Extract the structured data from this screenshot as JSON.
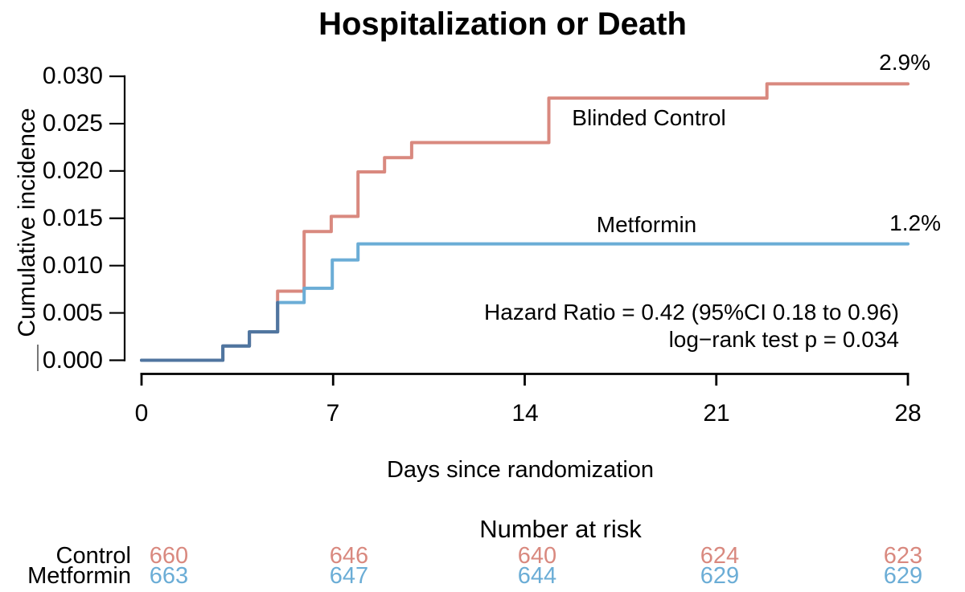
{
  "title": "Hospitalization or Death",
  "colors": {
    "control": "#d9897f",
    "metformin": "#6badd6",
    "overlap": "#50759f",
    "axis": "#000000"
  },
  "y_axis": {
    "label": "Cumulative incidence",
    "tick_labels": [
      "0.000",
      "0.005",
      "0.010",
      "0.015",
      "0.020",
      "0.025",
      "0.030"
    ],
    "tick_values": [
      0.0,
      0.005,
      0.01,
      0.015,
      0.02,
      0.025,
      0.03
    ]
  },
  "x_axis": {
    "label": "Days since randomization",
    "tick_labels": [
      "0",
      "7",
      "14",
      "21",
      "28"
    ],
    "tick_values": [
      0,
      7,
      14,
      21,
      28
    ]
  },
  "annotations": {
    "control_curve_label": "Blinded Control",
    "metformin_curve_label": "Metformin",
    "control_final_pct": "2.9%",
    "metformin_final_pct": "1.2%",
    "hazard_line1": "Hazard Ratio = 0.42 (95%CI 0.18 to 0.96)",
    "hazard_line2": "log−rank test p = 0.034"
  },
  "chart_data": {
    "type": "line",
    "subtype": "step-after cumulative incidence (Kaplan-Meier)",
    "title": "Hospitalization or Death",
    "xlabel": "Days since randomization",
    "ylabel": "Cumulative incidence",
    "xlim": [
      0,
      28
    ],
    "ylim": [
      0.0,
      0.03
    ],
    "x_ticks": [
      0,
      7,
      14,
      21,
      28
    ],
    "y_ticks": [
      0.0,
      0.005,
      0.01,
      0.015,
      0.02,
      0.025,
      0.03
    ],
    "grid": false,
    "legend_position": "labels drawn next to curves",
    "series": [
      {
        "name": "Blinded Control",
        "color": "#d9897f",
        "final_label": "2.9%",
        "points": [
          [
            0,
            0
          ],
          [
            2.97,
            0.0015
          ],
          [
            3.94,
            0.003
          ],
          [
            4.97,
            0.0061
          ],
          [
            4.97,
            0.0073
          ],
          [
            5.94,
            0.0136
          ],
          [
            6.93,
            0.0152
          ],
          [
            7.91,
            0.0199
          ],
          [
            8.88,
            0.0214
          ],
          [
            9.87,
            0.023
          ],
          [
            14.88,
            0.0277
          ],
          [
            22.85,
            0.0292
          ],
          [
            28,
            0.0292
          ]
        ]
      },
      {
        "name": "Metformin",
        "color": "#6badd6",
        "final_label": "1.2%",
        "points": [
          [
            0,
            0
          ],
          [
            2.97,
            0.0015
          ],
          [
            3.94,
            0.003
          ],
          [
            4.97,
            0.0061
          ],
          [
            5.94,
            0.0076
          ],
          [
            6.97,
            0.0106
          ],
          [
            7.91,
            0.0123
          ],
          [
            28,
            0.0123
          ]
        ]
      }
    ],
    "overlap_points": [
      [
        0,
        0
      ],
      [
        2.97,
        0.0015
      ],
      [
        3.94,
        0.003
      ],
      [
        4.97,
        0.0061
      ]
    ],
    "overlap_color": "#50759f"
  },
  "risk_table": {
    "header": "Number at risk",
    "columns": [
      0,
      7,
      14,
      21,
      28
    ],
    "rows": [
      {
        "label": "Control",
        "color": "#d9897f",
        "values": [
          "660",
          "646",
          "640",
          "624",
          "623"
        ]
      },
      {
        "label": "Metformin",
        "color": "#6badd6",
        "values": [
          "663",
          "647",
          "644",
          "629",
          "629"
        ]
      }
    ]
  }
}
